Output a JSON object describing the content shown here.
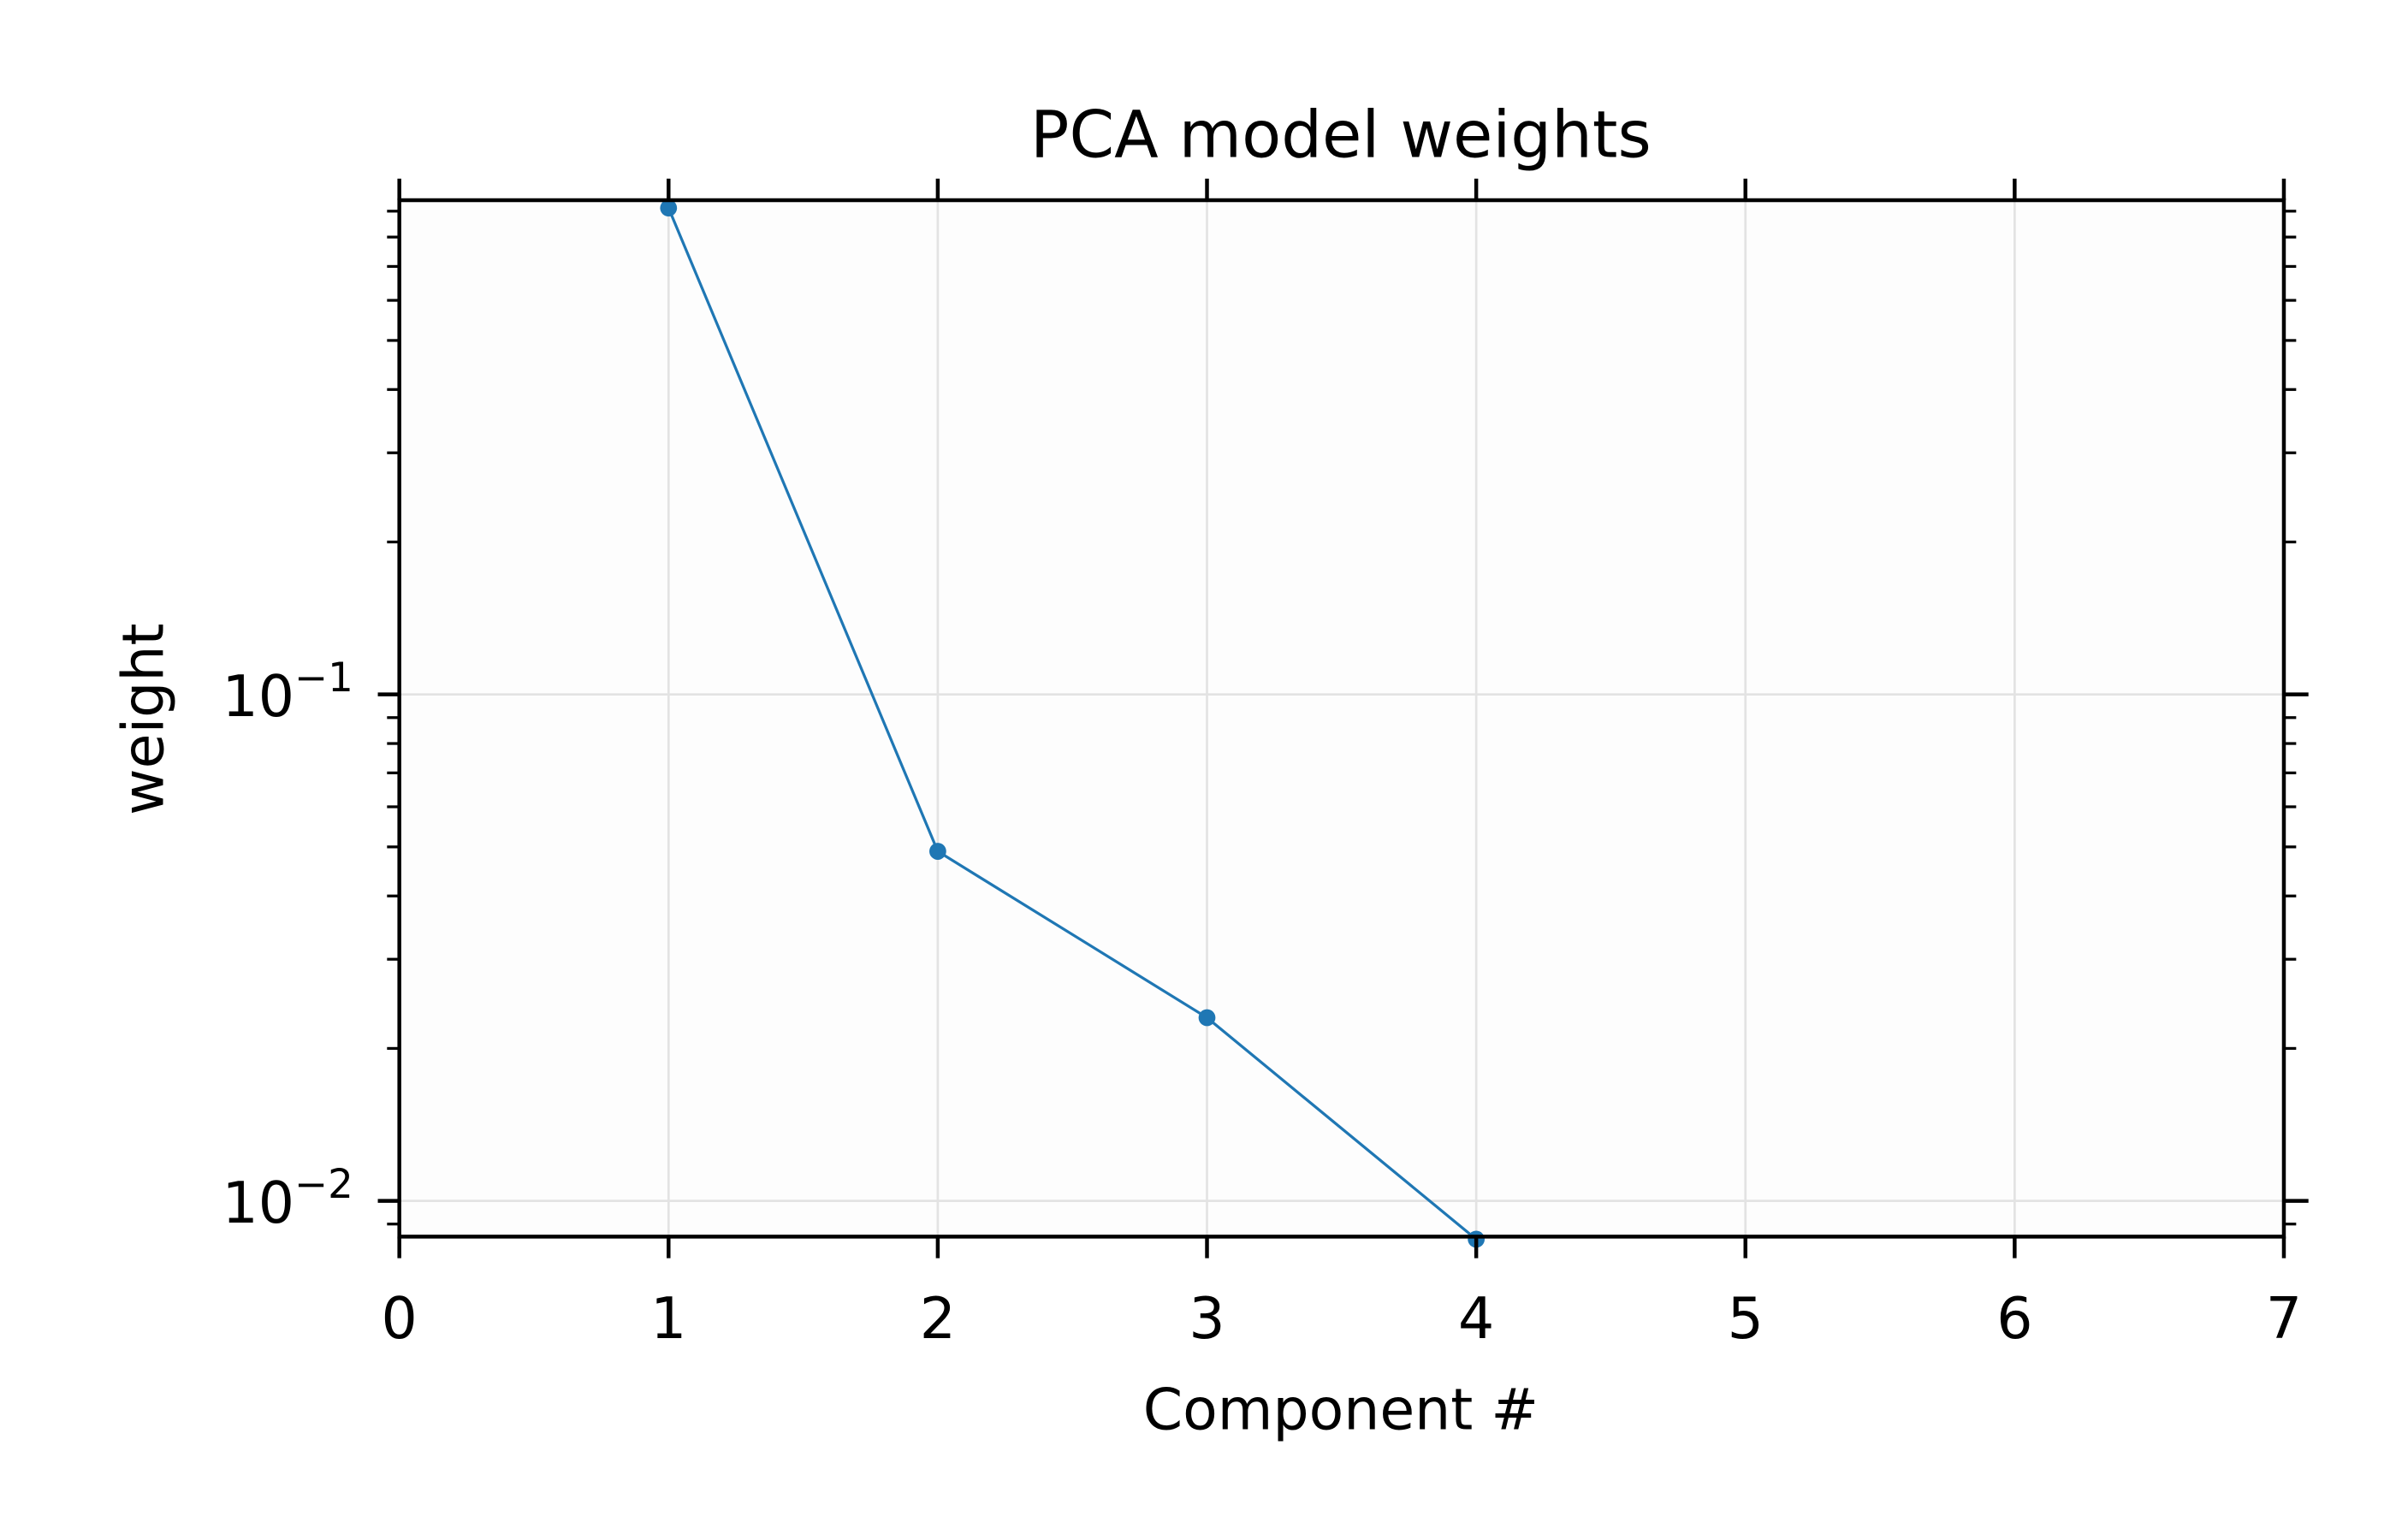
{
  "chart_data": {
    "type": "line",
    "title": "PCA model weights",
    "xlabel": "Component #",
    "ylabel": "weight",
    "x": [
      1,
      2,
      3,
      4
    ],
    "series": [
      {
        "name": "weight",
        "values": [
          0.913,
          0.049,
          0.023,
          0.0084
        ],
        "color": "#1f77b4"
      }
    ],
    "xlim": [
      0,
      7
    ],
    "ylim": [
      0.0085,
      0.946
    ],
    "yscale": "log",
    "xticks": [
      "0",
      "1",
      "2",
      "3",
      "4",
      "5",
      "6",
      "7"
    ],
    "yticks": [
      {
        "base": "10",
        "exp": "−1",
        "value": 0.1
      },
      {
        "base": "10",
        "exp": "−2",
        "value": 0.01
      }
    ],
    "grid": true,
    "legend": "none"
  }
}
